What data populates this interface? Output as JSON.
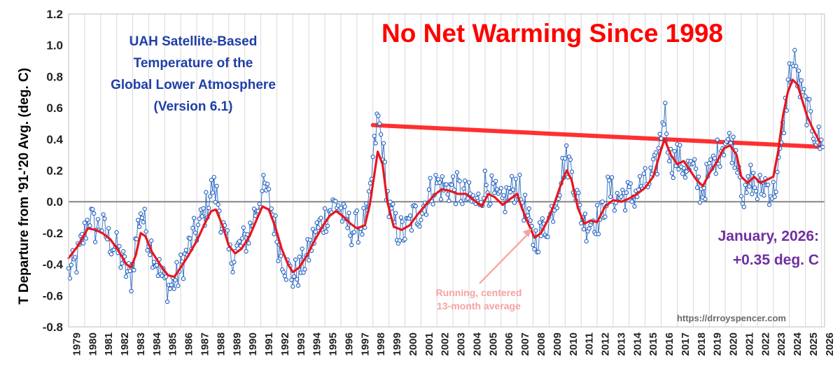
{
  "chart_data": {
    "type": "line",
    "title": "No Net Warming Since 1998",
    "subtitle_lines": [
      "UAH Satellite-Based",
      "Temperature of the",
      "Global Lower Atmosphere",
      "(Version 6.1)"
    ],
    "ylabel": "T Departure from '91-'20 Avg. (deg. C)",
    "xlabel": "",
    "ylim": [
      -0.8,
      1.2
    ],
    "yticks": [
      -0.8,
      -0.6,
      -0.4,
      -0.2,
      0.0,
      0.2,
      0.4,
      0.6,
      0.8,
      1.0,
      1.2
    ],
    "ytick_labels": [
      "-0.8",
      "-0.6",
      "-0.4",
      "-0.2",
      "0.0",
      "0.2",
      "0.4",
      "0.6",
      "0.8",
      "1.0",
      "1.2"
    ],
    "xlim": [
      1979,
      2026.2
    ],
    "xtick_labels": [
      "1979",
      "1980",
      "1981",
      "1982",
      "1983",
      "1984",
      "1985",
      "1986",
      "1987",
      "1988",
      "1989",
      "1990",
      "1991",
      "1992",
      "1993",
      "1994",
      "1995",
      "1996",
      "1997",
      "1998",
      "1999",
      "2000",
      "2001",
      "2002",
      "2003",
      "2004",
      "2005",
      "2006",
      "2007",
      "2008",
      "2009",
      "2010",
      "2011",
      "2012",
      "2013",
      "2014",
      "2015",
      "2016",
      "2017",
      "2018",
      "2019",
      "2020",
      "2021",
      "2022",
      "2023",
      "2024",
      "2025",
      "2026"
    ],
    "grid": "vertical",
    "zero_line": true,
    "monthly_anchor_points": [
      [
        1979.0,
        -0.46
      ],
      [
        1979.5,
        -0.38
      ],
      [
        1980.0,
        -0.2
      ],
      [
        1980.3,
        -0.08
      ],
      [
        1980.7,
        -0.18
      ],
      [
        1981.0,
        -0.14
      ],
      [
        1981.5,
        -0.24
      ],
      [
        1982.0,
        -0.3
      ],
      [
        1982.5,
        -0.42
      ],
      [
        1982.9,
        -0.5
      ],
      [
        1983.2,
        -0.25
      ],
      [
        1983.5,
        -0.05
      ],
      [
        1983.9,
        -0.2
      ],
      [
        1984.4,
        -0.36
      ],
      [
        1984.9,
        -0.5
      ],
      [
        1985.3,
        -0.55
      ],
      [
        1985.8,
        -0.48
      ],
      [
        1986.3,
        -0.35
      ],
      [
        1986.8,
        -0.22
      ],
      [
        1987.3,
        -0.12
      ],
      [
        1987.7,
        0.0
      ],
      [
        1988.0,
        0.1
      ],
      [
        1988.3,
        0.02
      ],
      [
        1988.8,
        -0.25
      ],
      [
        1989.1,
        -0.36
      ],
      [
        1989.6,
        -0.3
      ],
      [
        1990.2,
        -0.22
      ],
      [
        1990.6,
        -0.08
      ],
      [
        1991.0,
        0.05
      ],
      [
        1991.3,
        0.08
      ],
      [
        1991.7,
        -0.05
      ],
      [
        1992.1,
        -0.28
      ],
      [
        1992.6,
        -0.42
      ],
      [
        1993.0,
        -0.48
      ],
      [
        1993.4,
        -0.44
      ],
      [
        1993.9,
        -0.35
      ],
      [
        1994.4,
        -0.2
      ],
      [
        1994.9,
        -0.12
      ],
      [
        1995.3,
        -0.05
      ],
      [
        1995.8,
        0.0
      ],
      [
        1996.2,
        -0.12
      ],
      [
        1996.7,
        -0.18
      ],
      [
        1997.2,
        -0.15
      ],
      [
        1997.7,
        -0.1
      ],
      [
        1998.0,
        0.25
      ],
      [
        1998.3,
        0.55
      ],
      [
        1998.6,
        0.35
      ],
      [
        1999.0,
        -0.05
      ],
      [
        1999.5,
        -0.18
      ],
      [
        2000.0,
        -0.2
      ],
      [
        2000.5,
        -0.1
      ],
      [
        2001.0,
        -0.06
      ],
      [
        2001.5,
        0.05
      ],
      [
        2002.0,
        0.12
      ],
      [
        2002.5,
        0.08
      ],
      [
        2003.0,
        0.1
      ],
      [
        2003.5,
        0.06
      ],
      [
        2004.0,
        0.02
      ],
      [
        2004.5,
        -0.02
      ],
      [
        2005.0,
        0.12
      ],
      [
        2005.5,
        0.05
      ],
      [
        2006.0,
        -0.02
      ],
      [
        2006.5,
        0.05
      ],
      [
        2007.0,
        0.12
      ],
      [
        2007.5,
        -0.05
      ],
      [
        2008.0,
        -0.25
      ],
      [
        2008.5,
        -0.2
      ],
      [
        2009.0,
        -0.12
      ],
      [
        2009.5,
        0.05
      ],
      [
        2010.0,
        0.28
      ],
      [
        2010.4,
        0.22
      ],
      [
        2010.9,
        -0.05
      ],
      [
        2011.3,
        -0.15
      ],
      [
        2011.8,
        -0.1
      ],
      [
        2012.2,
        -0.12
      ],
      [
        2012.7,
        0.08
      ],
      [
        2013.2,
        0.02
      ],
      [
        2013.7,
        0.05
      ],
      [
        2014.2,
        0.03
      ],
      [
        2014.7,
        0.1
      ],
      [
        2015.2,
        0.12
      ],
      [
        2015.7,
        0.22
      ],
      [
        2016.0,
        0.45
      ],
      [
        2016.2,
        0.6
      ],
      [
        2016.6,
        0.25
      ],
      [
        2017.0,
        0.28
      ],
      [
        2017.5,
        0.22
      ],
      [
        2018.0,
        0.2
      ],
      [
        2018.5,
        0.06
      ],
      [
        2019.0,
        0.18
      ],
      [
        2019.5,
        0.3
      ],
      [
        2020.0,
        0.4
      ],
      [
        2020.4,
        0.36
      ],
      [
        2020.8,
        0.28
      ],
      [
        2021.2,
        -0.02
      ],
      [
        2021.6,
        0.16
      ],
      [
        2022.0,
        0.06
      ],
      [
        2022.5,
        0.12
      ],
      [
        2023.0,
        0.05
      ],
      [
        2023.4,
        0.25
      ],
      [
        2023.7,
        0.55
      ],
      [
        2024.0,
        0.82
      ],
      [
        2024.3,
        0.9
      ],
      [
        2024.7,
        0.7
      ],
      [
        2025.0,
        0.62
      ],
      [
        2025.4,
        0.5
      ],
      [
        2025.8,
        0.4
      ],
      [
        2026.0,
        0.35
      ]
    ],
    "running_average_points": [
      [
        1979.0,
        -0.36
      ],
      [
        1979.6,
        -0.28
      ],
      [
        1980.2,
        -0.17
      ],
      [
        1980.7,
        -0.18
      ],
      [
        1981.1,
        -0.2
      ],
      [
        1981.6,
        -0.24
      ],
      [
        1982.1,
        -0.31
      ],
      [
        1982.6,
        -0.4
      ],
      [
        1982.9,
        -0.42
      ],
      [
        1983.2,
        -0.34
      ],
      [
        1983.5,
        -0.2
      ],
      [
        1983.8,
        -0.22
      ],
      [
        1984.2,
        -0.32
      ],
      [
        1984.7,
        -0.4
      ],
      [
        1985.2,
        -0.47
      ],
      [
        1985.6,
        -0.48
      ],
      [
        1986.0,
        -0.42
      ],
      [
        1986.5,
        -0.34
      ],
      [
        1987.0,
        -0.25
      ],
      [
        1987.5,
        -0.14
      ],
      [
        1987.9,
        -0.06
      ],
      [
        1988.2,
        -0.05
      ],
      [
        1988.6,
        -0.15
      ],
      [
        1989.0,
        -0.28
      ],
      [
        1989.4,
        -0.33
      ],
      [
        1989.8,
        -0.3
      ],
      [
        1990.3,
        -0.22
      ],
      [
        1990.8,
        -0.1
      ],
      [
        1991.1,
        -0.03
      ],
      [
        1991.5,
        -0.05
      ],
      [
        1991.9,
        -0.16
      ],
      [
        1992.3,
        -0.3
      ],
      [
        1992.7,
        -0.4
      ],
      [
        1993.0,
        -0.45
      ],
      [
        1993.4,
        -0.42
      ],
      [
        1993.9,
        -0.34
      ],
      [
        1994.4,
        -0.24
      ],
      [
        1994.9,
        -0.15
      ],
      [
        1995.3,
        -0.09
      ],
      [
        1995.7,
        -0.06
      ],
      [
        1996.1,
        -0.09
      ],
      [
        1996.6,
        -0.14
      ],
      [
        1997.0,
        -0.17
      ],
      [
        1997.5,
        -0.15
      ],
      [
        1997.8,
        -0.02
      ],
      [
        1998.1,
        0.18
      ],
      [
        1998.3,
        0.32
      ],
      [
        1998.6,
        0.24
      ],
      [
        1998.9,
        0.0
      ],
      [
        1999.3,
        -0.16
      ],
      [
        1999.8,
        -0.18
      ],
      [
        2000.3,
        -0.15
      ],
      [
        2000.8,
        -0.08
      ],
      [
        2001.3,
        -0.02
      ],
      [
        2001.8,
        0.04
      ],
      [
        2002.3,
        0.08
      ],
      [
        2002.8,
        0.07
      ],
      [
        2003.3,
        0.05
      ],
      [
        2003.8,
        0.05
      ],
      [
        2004.3,
        0.01
      ],
      [
        2004.8,
        -0.03
      ],
      [
        2005.2,
        0.05
      ],
      [
        2005.6,
        0.03
      ],
      [
        2006.1,
        -0.02
      ],
      [
        2006.6,
        0.02
      ],
      [
        2007.0,
        0.05
      ],
      [
        2007.3,
        -0.04
      ],
      [
        2007.7,
        -0.14
      ],
      [
        2008.1,
        -0.23
      ],
      [
        2008.5,
        -0.2
      ],
      [
        2008.9,
        -0.12
      ],
      [
        2009.3,
        -0.02
      ],
      [
        2009.7,
        0.1
      ],
      [
        2010.1,
        0.2
      ],
      [
        2010.4,
        0.14
      ],
      [
        2010.8,
        -0.04
      ],
      [
        2011.2,
        -0.14
      ],
      [
        2011.6,
        -0.12
      ],
      [
        2012.0,
        -0.13
      ],
      [
        2012.5,
        -0.03
      ],
      [
        2013.0,
        0.01
      ],
      [
        2013.5,
        0.0
      ],
      [
        2014.0,
        0.02
      ],
      [
        2014.5,
        0.05
      ],
      [
        2015.0,
        0.09
      ],
      [
        2015.5,
        0.16
      ],
      [
        2015.9,
        0.3
      ],
      [
        2016.2,
        0.4
      ],
      [
        2016.6,
        0.3
      ],
      [
        2017.0,
        0.24
      ],
      [
        2017.4,
        0.26
      ],
      [
        2017.8,
        0.2
      ],
      [
        2018.2,
        0.14
      ],
      [
        2018.6,
        0.1
      ],
      [
        2019.0,
        0.18
      ],
      [
        2019.5,
        0.26
      ],
      [
        2019.9,
        0.34
      ],
      [
        2020.3,
        0.36
      ],
      [
        2020.7,
        0.3
      ],
      [
        2021.0,
        0.16
      ],
      [
        2021.4,
        0.12
      ],
      [
        2021.8,
        0.16
      ],
      [
        2022.2,
        0.12
      ],
      [
        2022.6,
        0.14
      ],
      [
        2023.0,
        0.16
      ],
      [
        2023.3,
        0.32
      ],
      [
        2023.6,
        0.55
      ],
      [
        2023.9,
        0.7
      ],
      [
        2024.2,
        0.78
      ],
      [
        2024.5,
        0.75
      ],
      [
        2024.8,
        0.65
      ],
      [
        2025.1,
        0.55
      ],
      [
        2025.4,
        0.48
      ],
      [
        2025.7,
        0.42
      ],
      [
        2025.9,
        0.38
      ]
    ],
    "trend_line": {
      "x": [
        1998.0,
        2026.1
      ],
      "y": [
        0.49,
        0.35
      ]
    },
    "annotations": {
      "avg_note_lines": [
        "Running, centered",
        "13-month average"
      ],
      "arrow_target": [
        2007.9,
        -0.17
      ],
      "reading_lines": [
        "January, 2026:",
        "+0.35 deg. C"
      ],
      "source": "https://drroyspencer.com"
    },
    "colors": {
      "monthly_line": "#1f5fbf",
      "monthly_marker": "#1f5fbf",
      "running_average": "#e8161e",
      "trend_line": "#ff1a1a",
      "title": "#ff0000",
      "subtitle": "#1f3fa8",
      "reading": "#7030a0"
    }
  }
}
